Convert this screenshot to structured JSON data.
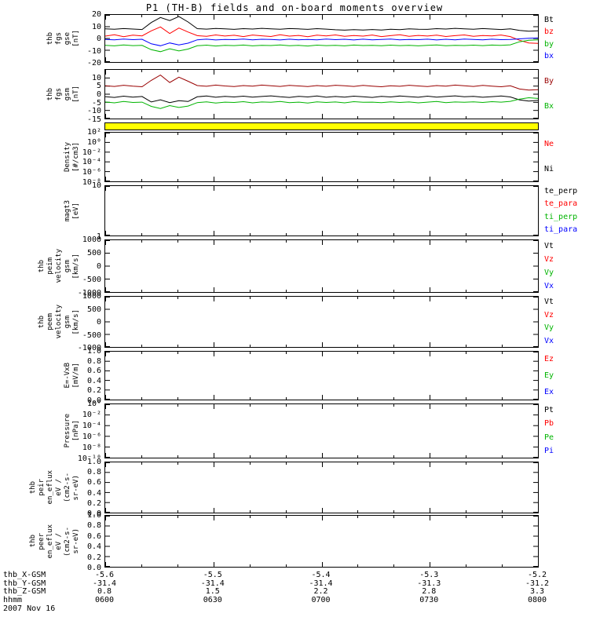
{
  "title": "P1 (TH-B) fields and on-board moments overview",
  "colors": {
    "black": "#000000",
    "red": "#ff0000",
    "green": "#00b400",
    "blue": "#0000ff",
    "maroon": "#990000",
    "flag_yellow": "#ffff00"
  },
  "chart_data": [
    {
      "id": "fgs-gse",
      "type": "line",
      "ylabel_lines": [
        "thb",
        "fgs",
        "gse",
        "[nT]"
      ],
      "scale": "linear",
      "ylim": [
        -20,
        20
      ],
      "yticks": [
        {
          "label": "20",
          "value": 20
        },
        {
          "label": "10",
          "value": 10
        },
        {
          "label": "0",
          "value": 0
        },
        {
          "label": "-10",
          "value": -10
        },
        {
          "label": "-20",
          "value": -20
        }
      ],
      "legend": [
        {
          "label": "Bt",
          "color": "#000000"
        },
        {
          "label": "bz",
          "color": "#ff0000"
        },
        {
          "label": "by",
          "color": "#00b400"
        },
        {
          "label": "bx",
          "color": "#0000ff"
        }
      ],
      "series": [
        {
          "name": "Bt",
          "color": "#000000",
          "values": [
            8.2,
            7.8,
            8.4,
            8.0,
            7.6,
            13.5,
            17.8,
            15.2,
            18.6,
            14.0,
            8.3,
            7.9,
            8.5,
            8.1,
            7.7,
            8.3,
            8.0,
            8.6,
            8.2,
            7.8,
            8.4,
            8.1,
            7.7,
            8.3,
            7.9,
            7.4,
            7.1,
            7.5,
            7.2,
            7.6,
            7.2,
            7.8,
            7.5,
            8.1,
            7.8,
            7.7,
            8.3,
            8.0,
            8.6,
            8.2,
            7.8,
            8.4,
            8.0,
            7.6,
            8.2,
            6.8,
            6.2,
            6.5
          ]
        },
        {
          "name": "bz",
          "color": "#ff0000",
          "values": [
            2.0,
            3.1,
            1.5,
            2.8,
            2.2,
            6.5,
            9.8,
            4.2,
            8.9,
            5.5,
            2.4,
            1.8,
            3.0,
            2.1,
            2.7,
            1.6,
            2.9,
            2.3,
            1.7,
            3.1,
            2.0,
            2.6,
            1.5,
            2.8,
            2.2,
            3.0,
            1.8,
            2.5,
            2.0,
            2.9,
            1.6,
            2.4,
            3.1,
            1.9,
            2.6,
            2.1,
            2.8,
            1.7,
            2.4,
            3.0,
            1.8,
            2.5,
            2.2,
            2.9,
            1.6,
            -1.5,
            -3.8,
            -4.2
          ]
        },
        {
          "name": "by",
          "color": "#00b400",
          "values": [
            -5.8,
            -6.3,
            -5.5,
            -6.1,
            -5.9,
            -9.5,
            -11.2,
            -8.8,
            -10.6,
            -9.0,
            -6.2,
            -5.7,
            -6.4,
            -5.9,
            -6.1,
            -5.6,
            -6.3,
            -5.8,
            -6.0,
            -5.5,
            -6.2,
            -5.9,
            -6.4,
            -5.7,
            -6.1,
            -5.8,
            -6.3,
            -5.6,
            -6.0,
            -5.9,
            -6.2,
            -5.7,
            -6.1,
            -5.8,
            -6.3,
            -5.9,
            -5.5,
            -6.2,
            -5.8,
            -6.0,
            -5.7,
            -6.1,
            -5.6,
            -5.9,
            -5.4,
            -2.8,
            -1.5,
            -1.2
          ]
        },
        {
          "name": "bx",
          "color": "#0000ff",
          "values": [
            -0.8,
            -1.2,
            -0.5,
            -1.0,
            -0.7,
            -4.5,
            -6.2,
            -3.8,
            -5.5,
            -4.0,
            -1.1,
            -0.6,
            -1.3,
            -0.8,
            -1.0,
            -0.5,
            -1.2,
            -0.7,
            -0.9,
            -1.3,
            -0.6,
            -1.1,
            -0.8,
            -1.2,
            -0.5,
            -1.0,
            -0.7,
            -1.3,
            -0.6,
            -1.1,
            -0.9,
            -0.5,
            -1.2,
            -0.8,
            -1.0,
            -0.6,
            -1.3,
            -0.7,
            -1.1,
            -0.5,
            -0.9,
            -1.2,
            -0.6,
            -1.0,
            -0.8,
            -0.3,
            0.2,
            0.4
          ]
        }
      ]
    },
    {
      "id": "fgs-gsm",
      "type": "line",
      "ylabel_lines": [
        "thb",
        "fgs",
        "gsm",
        "[nT]"
      ],
      "scale": "linear",
      "ylim": [
        -15,
        15
      ],
      "yticks": [
        {
          "label": "10",
          "value": 10
        },
        {
          "label": "5",
          "value": 5
        },
        {
          "label": "0",
          "value": 0
        },
        {
          "label": "-5",
          "value": -5
        },
        {
          "label": "-10",
          "value": -10
        },
        {
          "label": "-15",
          "value": -15
        }
      ],
      "legend": [
        {
          "label": "By",
          "color": "#990000"
        },
        {
          "label": "Bx",
          "color": "#00b400"
        }
      ],
      "series": [
        {
          "name": "By",
          "color": "#990000",
          "values": [
            5.2,
            4.8,
            5.5,
            5.0,
            4.6,
            8.5,
            11.8,
            7.2,
            10.5,
            8.0,
            5.3,
            4.9,
            5.6,
            5.1,
            4.7,
            5.3,
            5.0,
            5.6,
            5.2,
            4.8,
            5.4,
            5.1,
            4.7,
            5.3,
            4.9,
            5.5,
            5.2,
            4.8,
            5.4,
            5.0,
            4.6,
            5.2,
            4.9,
            5.5,
            5.1,
            4.7,
            5.3,
            5.0,
            5.6,
            5.2,
            4.8,
            5.4,
            5.0,
            4.6,
            5.2,
            3.2,
            2.5,
            2.8
          ]
        },
        {
          "name": "Bt",
          "color": "#000000",
          "values": [
            -1.5,
            -2.0,
            -1.2,
            -1.8,
            -1.4,
            -4.8,
            -3.5,
            -5.2,
            -4.0,
            -4.5,
            -1.6,
            -1.1,
            -1.9,
            -1.3,
            -1.7,
            -1.2,
            -1.8,
            -1.4,
            -1.0,
            -1.6,
            -2.0,
            -1.3,
            -1.7,
            -1.1,
            -1.9,
            -1.4,
            -1.8,
            -1.2,
            -1.6,
            -2.0,
            -1.3,
            -1.7,
            -1.1,
            -1.5,
            -1.9,
            -1.2,
            -1.8,
            -1.4,
            -1.0,
            -1.6,
            -1.3,
            -1.9,
            -1.5,
            -1.1,
            -1.7,
            -3.5,
            -4.2,
            -3.8
          ]
        },
        {
          "name": "Bx",
          "color": "#00b400",
          "values": [
            -4.8,
            -5.3,
            -4.5,
            -5.1,
            -4.9,
            -7.5,
            -8.8,
            -7.0,
            -8.2,
            -7.3,
            -5.2,
            -4.7,
            -5.4,
            -4.9,
            -5.1,
            -4.6,
            -5.3,
            -4.8,
            -5.0,
            -4.5,
            -5.2,
            -4.9,
            -5.4,
            -4.7,
            -5.1,
            -4.8,
            -5.3,
            -4.6,
            -5.0,
            -4.9,
            -5.2,
            -4.7,
            -5.1,
            -4.8,
            -5.3,
            -4.9,
            -4.5,
            -5.2,
            -4.8,
            -5.0,
            -4.7,
            -5.1,
            -4.6,
            -4.9,
            -4.4,
            -3.0,
            -2.2,
            -2.6
          ]
        }
      ]
    },
    {
      "id": "flag-bar",
      "type": "flag",
      "color": "#ffff00"
    },
    {
      "id": "density",
      "type": "line",
      "ylabel_lines": [
        "Density",
        "[#/cm3]"
      ],
      "scale": "log",
      "ylim": [
        1e-08,
        100
      ],
      "yticks": [
        {
          "label": "10²",
          "value": 100
        },
        {
          "label": "10⁰",
          "value": 1
        },
        {
          "label": "10⁻²",
          "value": 0.01
        },
        {
          "label": "10⁻⁴",
          "value": 0.0001
        },
        {
          "label": "10⁻⁶",
          "value": 1e-06
        },
        {
          "label": "10⁻⁸",
          "value": 1e-08
        }
      ],
      "legend": [
        {
          "label": "Ne",
          "color": "#ff0000"
        },
        {
          "label": "Ni",
          "color": "#000000"
        }
      ],
      "series": []
    },
    {
      "id": "magt3",
      "type": "line",
      "ylabel_lines": [
        "magt3",
        "[eV]"
      ],
      "scale": "log",
      "ylim": [
        1,
        10
      ],
      "yticks": [
        {
          "label": "10",
          "value": 10
        },
        {
          "label": "1",
          "value": 1
        }
      ],
      "legend": [
        {
          "label": "te_perp",
          "color": "#000000"
        },
        {
          "label": "te_para",
          "color": "#ff0000"
        },
        {
          "label": "ti_perp",
          "color": "#00b400"
        },
        {
          "label": "ti_para",
          "color": "#0000ff"
        }
      ],
      "series": []
    },
    {
      "id": "peim-velocity",
      "type": "line",
      "ylabel_lines": [
        "thb",
        "peim",
        "velocity",
        "gsm",
        "[km/s]"
      ],
      "scale": "linear",
      "ylim": [
        -1000,
        1000
      ],
      "yticks": [
        {
          "label": "1000",
          "value": 1000
        },
        {
          "label": "500",
          "value": 500
        },
        {
          "label": "0",
          "value": 0
        },
        {
          "label": "-500",
          "value": -500
        },
        {
          "label": "-1000",
          "value": -1000
        }
      ],
      "legend": [
        {
          "label": "Vt",
          "color": "#000000"
        },
        {
          "label": "Vz",
          "color": "#ff0000"
        },
        {
          "label": "Vy",
          "color": "#00b400"
        },
        {
          "label": "Vx",
          "color": "#0000ff"
        }
      ],
      "series": []
    },
    {
      "id": "peem-velocity",
      "type": "line",
      "ylabel_lines": [
        "thb",
        "peem",
        "velocity",
        "gsm",
        "[km/s]"
      ],
      "scale": "linear",
      "ylim": [
        -1000,
        1000
      ],
      "yticks": [
        {
          "label": "1000",
          "value": 1000
        },
        {
          "label": "500",
          "value": 500
        },
        {
          "label": "0",
          "value": 0
        },
        {
          "label": "-500",
          "value": -500
        },
        {
          "label": "-1000",
          "value": -1000
        }
      ],
      "legend": [
        {
          "label": "Vt",
          "color": "#000000"
        },
        {
          "label": "Vz",
          "color": "#ff0000"
        },
        {
          "label": "Vy",
          "color": "#00b400"
        },
        {
          "label": "Vx",
          "color": "#0000ff"
        }
      ],
      "series": []
    },
    {
      "id": "e-vxb",
      "type": "line",
      "ylabel_lines": [
        "E=-VxB",
        "[mV/m]"
      ],
      "scale": "linear",
      "ylim": [
        0,
        1
      ],
      "yticks": [
        {
          "label": "1.0",
          "value": 1
        },
        {
          "label": "0.8",
          "value": 0.8
        },
        {
          "label": "0.6",
          "value": 0.6
        },
        {
          "label": "0.4",
          "value": 0.4
        },
        {
          "label": "0.2",
          "value": 0.2
        },
        {
          "label": "0.0",
          "value": 0
        }
      ],
      "legend": [
        {
          "label": "Ez",
          "color": "#ff0000"
        },
        {
          "label": "Ey",
          "color": "#00b400"
        },
        {
          "label": "Ex",
          "color": "#0000ff"
        }
      ],
      "series": []
    },
    {
      "id": "pressure",
      "type": "line",
      "ylabel_lines": [
        "Pressure",
        "[nPa]"
      ],
      "scale": "log",
      "ylim": [
        1e-10,
        1
      ],
      "yticks": [
        {
          "label": "10⁰",
          "value": 1
        },
        {
          "label": "10⁻²",
          "value": 0.01
        },
        {
          "label": "10⁻⁴",
          "value": 0.0001
        },
        {
          "label": "10⁻⁶",
          "value": 1e-06
        },
        {
          "label": "10⁻⁸",
          "value": 1e-08
        },
        {
          "label": "10⁻¹⁰",
          "value": 1e-10
        }
      ],
      "legend": [
        {
          "label": "Pt",
          "color": "#000000"
        },
        {
          "label": "Pb",
          "color": "#ff0000"
        },
        {
          "label": "Pe",
          "color": "#00b400"
        },
        {
          "label": "Pi",
          "color": "#0000ff"
        }
      ],
      "series": []
    },
    {
      "id": "peir-eflux",
      "type": "line",
      "ylabel_lines": [
        "thb",
        "peir",
        "en_eflux",
        "eV /",
        "(cm2-s-",
        "sr-eV)"
      ],
      "scale": "linear",
      "ylim": [
        0,
        1
      ],
      "yticks": [
        {
          "label": "1.0",
          "value": 1
        },
        {
          "label": "0.8",
          "value": 0.8
        },
        {
          "label": "0.6",
          "value": 0.6
        },
        {
          "label": "0.4",
          "value": 0.4
        },
        {
          "label": "0.2",
          "value": 0.2
        },
        {
          "label": "0.0",
          "value": 0
        }
      ],
      "legend": [],
      "series": []
    },
    {
      "id": "peer-eflux",
      "type": "line",
      "ylabel_lines": [
        "thb",
        "peer",
        "en_eflux",
        "eV /",
        "(cm2-s-",
        "sr-eV)"
      ],
      "scale": "linear",
      "ylim": [
        0,
        1
      ],
      "yticks": [
        {
          "label": "1.0",
          "value": 1
        },
        {
          "label": "0.8",
          "value": 0.8
        },
        {
          "label": "0.6",
          "value": 0.6
        },
        {
          "label": "0.4",
          "value": 0.4
        },
        {
          "label": "0.2",
          "value": 0.2
        },
        {
          "label": "0.0",
          "value": 0
        }
      ],
      "legend": [],
      "series": []
    }
  ],
  "xaxis": {
    "rows": [
      {
        "name": "thb_X-GSM",
        "values": [
          "-5.6",
          "-5.5",
          "-5.4",
          "-5.3",
          "-5.2"
        ]
      },
      {
        "name": "thb_Y-GSM",
        "values": [
          "-31.4",
          "-31.4",
          "-31.4",
          "-31.3",
          "-31.2"
        ]
      },
      {
        "name": "thb_Z-GSM",
        "values": [
          "0.8",
          "1.5",
          "2.2",
          "2.8",
          "3.3"
        ]
      },
      {
        "name": "hhmm",
        "values": [
          "0600",
          "0630",
          "0700",
          "0730",
          "0800"
        ]
      }
    ],
    "date": "2007 Nov 16"
  }
}
